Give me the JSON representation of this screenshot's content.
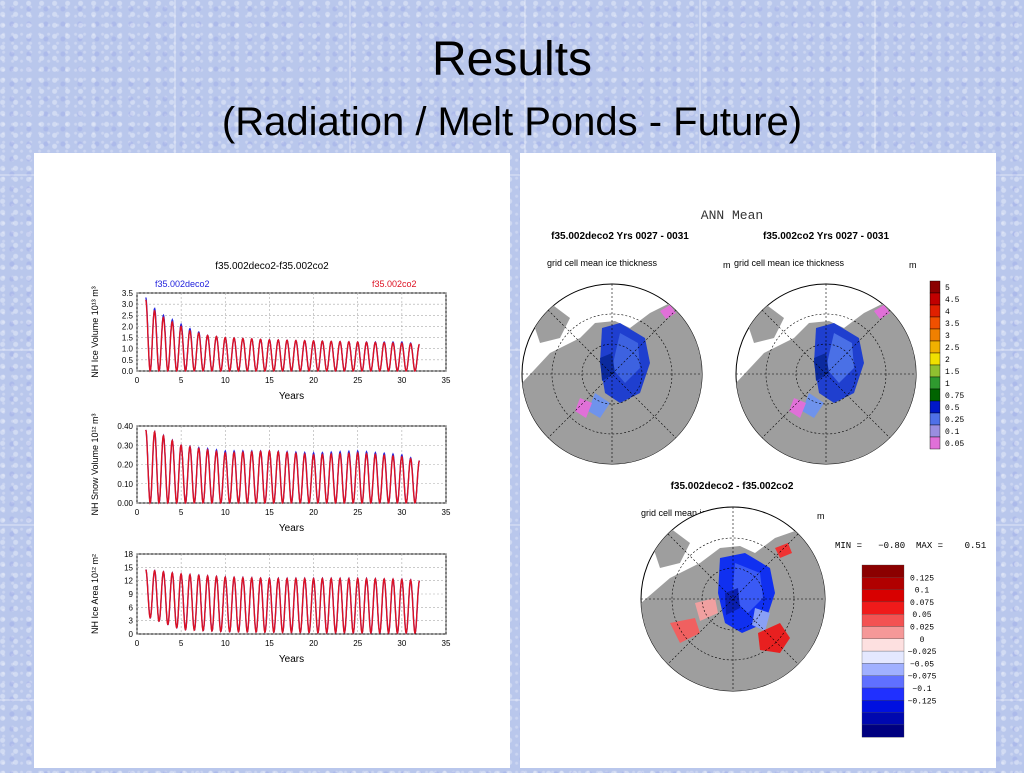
{
  "slide": {
    "title": "Results",
    "subtitle": "(Radiation / Melt Ponds - Future)"
  },
  "colors": {
    "deco2": "#2222dd",
    "co2": "#dd1122"
  },
  "left_panel": {
    "plot_title": "f35.002deco2-f35.002co2",
    "legend_deco2": "f35.002deco2",
    "legend_co2": "f35.002co2"
  },
  "right_panel": {
    "header": "ANN Mean",
    "map1_title": "f35.002deco2  Yrs 0027 - 0031",
    "map2_title": "f35.002co2  Yrs 0027 - 0031",
    "map_subtitle": "grid cell mean ice thickness",
    "unit": "m",
    "colorbar1_labels": [
      "5",
      "4.5",
      "4",
      "3.5",
      "3",
      "2.5",
      "2",
      "1.5",
      "1",
      "0.75",
      "0.5",
      "0.25",
      "0.1",
      "0.05"
    ],
    "diff_title": "f35.002deco2 - f35.002co2",
    "diff_subtitle": "grid cell mean ice thickness",
    "diff_unit": "m",
    "minmax": "MIN =   −0.80  MAX =    0.51",
    "colorbar2_labels": [
      "0.125",
      "0.1",
      "0.075",
      "0.05",
      "0.025",
      "0",
      "−0.025",
      "−0.05",
      "−0.075",
      "−0.1",
      "−0.125"
    ]
  },
  "chart_data": [
    {
      "type": "line",
      "title": "f35.002deco2-f35.002co2",
      "xlabel": "Years",
      "ylabel": "NH Ice Volume 10¹³ m³",
      "xlim": [
        0,
        35
      ],
      "ylim": [
        0,
        3.5
      ],
      "x_ticks": [
        "0",
        "5",
        "10",
        "15",
        "20",
        "25",
        "30",
        "35"
      ],
      "y_ticks": [
        "0.0",
        "0.5",
        "1.0",
        "1.5",
        "2.0",
        "2.5",
        "3.0",
        "3.5"
      ],
      "grid": true,
      "series": [
        {
          "name": "f35.002deco2",
          "approx_peaks_by_year": [
            [
              1,
              3.3
            ],
            [
              2,
              2.8
            ],
            [
              3,
              2.5
            ],
            [
              4,
              2.3
            ],
            [
              5,
              2.1
            ],
            [
              6,
              1.9
            ],
            [
              8,
              1.6
            ],
            [
              10,
              1.5
            ],
            [
              15,
              1.4
            ],
            [
              20,
              1.35
            ],
            [
              25,
              1.3
            ],
            [
              30,
              1.3
            ],
            [
              32,
              1.2
            ]
          ],
          "approx_minimum": 0.0
        },
        {
          "name": "f35.002co2",
          "approx_peaks_by_year": [
            [
              1,
              3.2
            ],
            [
              2,
              2.7
            ],
            [
              3,
              2.4
            ],
            [
              4,
              2.2
            ],
            [
              5,
              2.0
            ],
            [
              6,
              1.8
            ],
            [
              8,
              1.6
            ],
            [
              10,
              1.5
            ],
            [
              15,
              1.4
            ],
            [
              20,
              1.35
            ],
            [
              25,
              1.3
            ],
            [
              30,
              1.25
            ],
            [
              32,
              1.2
            ]
          ],
          "approx_minimum": 0.0
        }
      ]
    },
    {
      "type": "line",
      "xlabel": "Years",
      "ylabel": "NH Snow Volume 10¹² m³",
      "xlim": [
        0,
        35
      ],
      "ylim": [
        0,
        0.4
      ],
      "x_ticks": [
        "0",
        "5",
        "10",
        "15",
        "20",
        "25",
        "30",
        "35"
      ],
      "y_ticks": [
        "0.00",
        "0.10",
        "0.20",
        "0.30",
        "0.40"
      ],
      "grid": true,
      "series": [
        {
          "name": "f35.002deco2",
          "approx_peaks_by_year": [
            [
              1,
              0.38
            ],
            [
              2,
              0.37
            ],
            [
              3,
              0.35
            ],
            [
              5,
              0.3
            ],
            [
              10,
              0.27
            ],
            [
              15,
              0.27
            ],
            [
              20,
              0.26
            ],
            [
              25,
              0.27
            ],
            [
              30,
              0.25
            ],
            [
              32,
              0.22
            ]
          ],
          "approx_minimum": 0.0
        },
        {
          "name": "f35.002co2",
          "approx_peaks_by_year": [
            [
              1,
              0.38
            ],
            [
              2,
              0.37
            ],
            [
              3,
              0.35
            ],
            [
              5,
              0.3
            ],
            [
              10,
              0.26
            ],
            [
              15,
              0.27
            ],
            [
              20,
              0.25
            ],
            [
              25,
              0.26
            ],
            [
              30,
              0.24
            ],
            [
              32,
              0.22
            ]
          ],
          "approx_minimum": 0.0
        }
      ]
    },
    {
      "type": "line",
      "xlabel": "Years",
      "ylabel": "NH Ice Area 10¹² m²",
      "xlim": [
        0,
        35
      ],
      "ylim": [
        0,
        18
      ],
      "x_ticks": [
        "0",
        "5",
        "10",
        "15",
        "20",
        "25",
        "30",
        "35"
      ],
      "y_ticks": [
        "0",
        "3",
        "6",
        "9",
        "12",
        "15",
        "18"
      ],
      "grid": true,
      "series": [
        {
          "name": "f35.002deco2",
          "approx_peaks_by_year": [
            [
              1,
              14.5
            ],
            [
              5,
              13.5
            ],
            [
              10,
              12.8
            ],
            [
              15,
              12.5
            ],
            [
              20,
              12.5
            ],
            [
              25,
              12.5
            ],
            [
              30,
              12.3
            ],
            [
              32,
              12.0
            ]
          ],
          "approx_minima_by_year": [
            [
              1,
              4
            ],
            [
              5,
              1
            ],
            [
              10,
              0.5
            ],
            [
              20,
              0.3
            ],
            [
              30,
              0.2
            ]
          ]
        },
        {
          "name": "f35.002co2",
          "approx_peaks_by_year": [
            [
              1,
              14.5
            ],
            [
              5,
              13.5
            ],
            [
              10,
              12.8
            ],
            [
              15,
              12.5
            ],
            [
              20,
              12.5
            ],
            [
              25,
              12.5
            ],
            [
              30,
              12.3
            ],
            [
              32,
              12.0
            ]
          ],
          "approx_minima_by_year": [
            [
              1,
              4
            ],
            [
              5,
              1
            ],
            [
              10,
              0.5
            ],
            [
              20,
              0.3
            ],
            [
              30,
              0.2
            ]
          ]
        }
      ]
    }
  ]
}
